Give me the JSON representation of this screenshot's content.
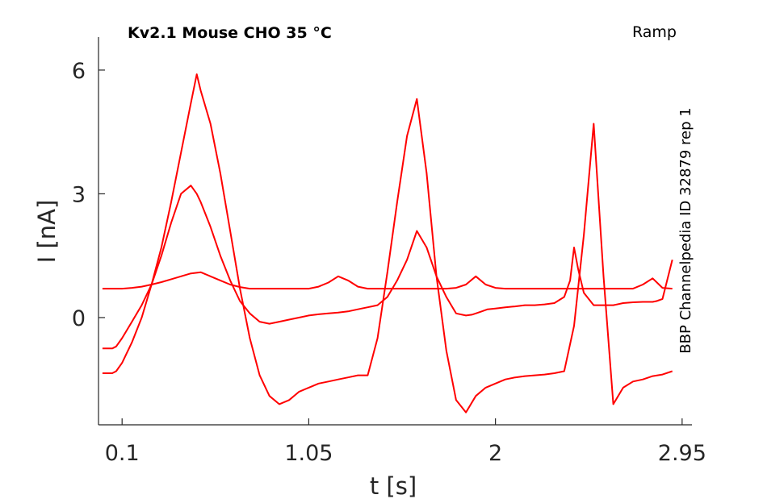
{
  "chart_data": {
    "type": "line",
    "title": "Kv2.1  Mouse  CHO  35 °C",
    "protocol_label": "Ramp",
    "side_label": "BBP Channelpedia ID 32879 rep 1",
    "xlabel": "t [s]",
    "ylabel": "I [nA]",
    "xlim": [
      -0.02,
      3.0
    ],
    "ylim": [
      -2.6,
      6.8
    ],
    "xticks": [
      0.1,
      1.05,
      2,
      2.95
    ],
    "xtick_labels": [
      "0.1",
      "1.05",
      "2",
      "2.95"
    ],
    "yticks": [
      0,
      3,
      6
    ],
    "ytick_labels": [
      "0",
      "3",
      "6"
    ],
    "grid": false,
    "line_color": "#ff0000",
    "series": [
      {
        "x": [
          0.0,
          0.05,
          0.1,
          0.15,
          0.2,
          0.25,
          0.3,
          0.35,
          0.4,
          0.45,
          0.5,
          0.55,
          0.6,
          0.65,
          0.7,
          0.75,
          0.8,
          0.85,
          0.9,
          0.95,
          1.0,
          1.05,
          1.1,
          1.15,
          1.2,
          1.25,
          1.3,
          1.35,
          1.4,
          1.45,
          1.5,
          1.55,
          1.6,
          1.65,
          1.7,
          1.75,
          1.8,
          1.85,
          1.9,
          1.95,
          2.0,
          2.05,
          2.1,
          2.15,
          2.2,
          2.25,
          2.3,
          2.35,
          2.4,
          2.45,
          2.5,
          2.55,
          2.6,
          2.65,
          2.7,
          2.75,
          2.8,
          2.85,
          2.9
        ],
        "values": [
          0.7,
          0.7,
          0.7,
          0.72,
          0.75,
          0.8,
          0.86,
          0.93,
          1.0,
          1.07,
          1.1,
          1.0,
          0.9,
          0.8,
          0.74,
          0.7,
          0.7,
          0.7,
          0.7,
          0.7,
          0.7,
          0.7,
          0.75,
          0.85,
          1.0,
          0.9,
          0.75,
          0.7,
          0.7,
          0.7,
          0.7,
          0.7,
          0.7,
          0.7,
          0.7,
          0.7,
          0.72,
          0.8,
          1.0,
          0.8,
          0.72,
          0.7,
          0.7,
          0.7,
          0.7,
          0.7,
          0.7,
          0.7,
          0.7,
          0.7,
          0.7,
          0.7,
          0.7,
          0.7,
          0.7,
          0.8,
          0.95,
          0.72,
          0.7
        ]
      },
      {
        "x": [
          0.0,
          0.05,
          0.07,
          0.1,
          0.15,
          0.2,
          0.25,
          0.3,
          0.35,
          0.4,
          0.45,
          0.48,
          0.5,
          0.55,
          0.6,
          0.65,
          0.7,
          0.75,
          0.8,
          0.85,
          0.9,
          0.95,
          1.0,
          1.05,
          1.1,
          1.15,
          1.2,
          1.25,
          1.3,
          1.35,
          1.4,
          1.45,
          1.5,
          1.55,
          1.6,
          1.65,
          1.7,
          1.75,
          1.8,
          1.85,
          1.88,
          1.9,
          1.93,
          1.96,
          2.0,
          2.05,
          2.1,
          2.15,
          2.2,
          2.25,
          2.3,
          2.35,
          2.38,
          2.4,
          2.42,
          2.45,
          2.5,
          2.55,
          2.6,
          2.65,
          2.7,
          2.75,
          2.78,
          2.8,
          2.82,
          2.85,
          2.9
        ],
        "values": [
          -0.75,
          -0.75,
          -0.7,
          -0.5,
          -0.1,
          0.3,
          0.8,
          1.5,
          2.3,
          3.0,
          3.2,
          3.0,
          2.8,
          2.2,
          1.5,
          0.9,
          0.4,
          0.1,
          -0.1,
          -0.15,
          -0.1,
          -0.05,
          0.0,
          0.05,
          0.08,
          0.1,
          0.12,
          0.15,
          0.2,
          0.25,
          0.3,
          0.5,
          0.9,
          1.4,
          2.1,
          1.7,
          1.0,
          0.5,
          0.1,
          0.05,
          0.07,
          0.1,
          0.15,
          0.2,
          0.22,
          0.25,
          0.27,
          0.3,
          0.3,
          0.32,
          0.35,
          0.5,
          0.9,
          1.7,
          1.2,
          0.6,
          0.3,
          0.3,
          0.3,
          0.35,
          0.37,
          0.38,
          0.38,
          0.38,
          0.4,
          0.45,
          1.4
        ]
      },
      {
        "x": [
          0.0,
          0.05,
          0.07,
          0.1,
          0.15,
          0.2,
          0.25,
          0.3,
          0.35,
          0.4,
          0.45,
          0.48,
          0.5,
          0.55,
          0.6,
          0.65,
          0.7,
          0.75,
          0.8,
          0.85,
          0.9,
          0.95,
          1.0,
          1.05,
          1.1,
          1.15,
          1.2,
          1.25,
          1.3,
          1.35,
          1.4,
          1.45,
          1.5,
          1.55,
          1.6,
          1.65,
          1.7,
          1.75,
          1.8,
          1.85,
          1.9,
          1.95,
          2.0,
          2.05,
          2.1,
          2.15,
          2.2,
          2.25,
          2.3,
          2.35,
          2.4,
          2.45,
          2.5,
          2.55,
          2.6,
          2.65,
          2.7,
          2.75,
          2.8,
          2.85,
          2.9
        ],
        "values": [
          -1.35,
          -1.35,
          -1.3,
          -1.1,
          -0.6,
          0.0,
          0.8,
          1.7,
          2.8,
          4.0,
          5.2,
          5.9,
          5.5,
          4.7,
          3.5,
          2.1,
          0.7,
          -0.5,
          -1.4,
          -1.9,
          -2.1,
          -2.0,
          -1.8,
          -1.7,
          -1.6,
          -1.55,
          -1.5,
          -1.45,
          -1.4,
          -1.4,
          -0.5,
          1.1,
          2.8,
          4.4,
          5.3,
          3.5,
          1.0,
          -0.8,
          -2.0,
          -2.3,
          -1.9,
          -1.7,
          -1.6,
          -1.5,
          -1.45,
          -1.42,
          -1.4,
          -1.38,
          -1.35,
          -1.3,
          -0.2,
          2.0,
          4.7,
          1.0,
          -2.1,
          -1.7,
          -1.55,
          -1.5,
          -1.42,
          -1.38,
          -1.3
        ]
      }
    ]
  }
}
